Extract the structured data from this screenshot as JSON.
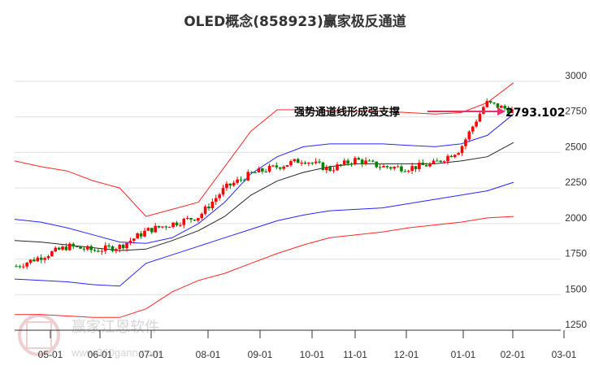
{
  "title": "OLED概念(858923)赢家极反通道",
  "annotation": {
    "text": "强势通道线形成强支撑",
    "price_label": "2793.102",
    "arrow_color": "#e8306a"
  },
  "watermark": {
    "logo_text": "江恩",
    "brand": "赢家江恩软件",
    "url": "www.360gann.com"
  },
  "colors": {
    "up_candle": "#ff0000",
    "down_candle": "#008000",
    "outer_band": "#ff0000",
    "inner_band": "#0000ff",
    "middle_line": "#000000",
    "grid": "#e0e0e0"
  },
  "chart_data": {
    "type": "candlestick",
    "title": "OLED概念(858923)赢家极反通道",
    "xlabel": "",
    "ylabel": "",
    "ylim": [
      1250,
      3000
    ],
    "y_ticks": [
      3000,
      2750,
      2500,
      2250,
      2000,
      1750,
      1500,
      1250
    ],
    "x_ticks": [
      "05-01",
      "06-01",
      "07-01",
      "08-01",
      "09-01",
      "10-01",
      "11-01",
      "12-01",
      "01-01",
      "02-01",
      "03-01"
    ],
    "grid": "horizontal",
    "legend": "none",
    "last_price": 2793.102,
    "annotation": "强势通道线形成强支撑",
    "series": [
      {
        "name": "close_approx",
        "x": [
          "04-15",
          "05-01",
          "05-15",
          "06-01",
          "06-15",
          "07-01",
          "07-15",
          "08-01",
          "08-15",
          "09-01",
          "09-15",
          "10-01",
          "10-15",
          "11-01",
          "11-15",
          "12-01",
          "12-15",
          "01-01",
          "01-15",
          "02-01"
        ],
        "values": [
          1700,
          1770,
          1840,
          1810,
          1840,
          1950,
          2000,
          2050,
          2250,
          2350,
          2400,
          2450,
          2380,
          2450,
          2400,
          2390,
          2420,
          2520,
          2850,
          2793
        ]
      },
      {
        "name": "upper_outer_band",
        "values": [
          2440,
          2400,
          2370,
          2300,
          2250,
          2050,
          2100,
          2150,
          2400,
          2650,
          2800,
          2800,
          2790,
          2790,
          2790,
          2780,
          2770,
          2780,
          2850,
          2990
        ]
      },
      {
        "name": "upper_inner_band",
        "values": [
          2030,
          2010,
          1970,
          1920,
          1870,
          1860,
          1900,
          2000,
          2150,
          2350,
          2470,
          2540,
          2560,
          2560,
          2560,
          2550,
          2540,
          2560,
          2620,
          2770
        ]
      },
      {
        "name": "middle_line",
        "values": [
          1880,
          1870,
          1850,
          1830,
          1810,
          1820,
          1880,
          1950,
          2050,
          2200,
          2300,
          2360,
          2400,
          2420,
          2420,
          2420,
          2420,
          2440,
          2470,
          2570
        ]
      },
      {
        "name": "lower_inner_band",
        "values": [
          1610,
          1600,
          1590,
          1570,
          1560,
          1720,
          1780,
          1840,
          1900,
          1960,
          2020,
          2060,
          2090,
          2100,
          2110,
          2140,
          2170,
          2200,
          2230,
          2290
        ]
      },
      {
        "name": "lower_outer_band",
        "values": [
          1360,
          1360,
          1350,
          1340,
          1340,
          1400,
          1520,
          1600,
          1650,
          1720,
          1790,
          1850,
          1900,
          1920,
          1940,
          1970,
          1990,
          2010,
          2040,
          2050
        ]
      }
    ]
  }
}
